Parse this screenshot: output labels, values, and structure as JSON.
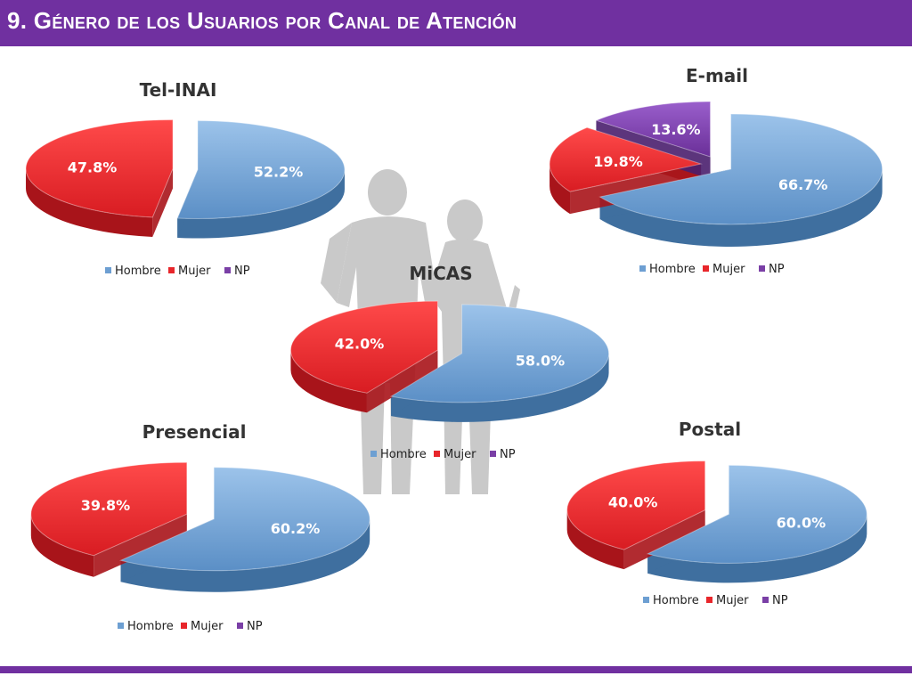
{
  "page": {
    "title": "9. Género de los Usuarios por Canal de Atención"
  },
  "colors": {
    "header": "#7030a0",
    "Hombre": "#6d9fd2",
    "Mujer": "#e8262b",
    "NP": "#7a3fa6",
    "silhouette": "#c8c8c8"
  },
  "legend": [
    "Hombre",
    "Mujer",
    "NP"
  ],
  "chart_data": [
    {
      "type": "pie",
      "title": "Tel-INAI",
      "series": [
        {
          "name": "Hombre",
          "value": 52.2,
          "label": "52.2%"
        },
        {
          "name": "Mujer",
          "value": 47.8,
          "label": "47.8%"
        }
      ]
    },
    {
      "type": "pie",
      "title": "E-mail",
      "series": [
        {
          "name": "Hombre",
          "value": 66.7,
          "label": "66.7%"
        },
        {
          "name": "Mujer",
          "value": 19.8,
          "label": "19.8%"
        },
        {
          "name": "NP",
          "value": 13.6,
          "label": "13.6%"
        }
      ]
    },
    {
      "type": "pie",
      "title": "MiCAS",
      "series": [
        {
          "name": "Hombre",
          "value": 58.0,
          "label": "58.0%"
        },
        {
          "name": "Mujer",
          "value": 42.0,
          "label": "42.0%"
        }
      ]
    },
    {
      "type": "pie",
      "title": "Presencial",
      "series": [
        {
          "name": "Hombre",
          "value": 60.2,
          "label": "60.2%"
        },
        {
          "name": "Mujer",
          "value": 39.8,
          "label": "39.8%"
        }
      ]
    },
    {
      "type": "pie",
      "title": "Postal",
      "series": [
        {
          "name": "Hombre",
          "value": 60.0,
          "label": "60.0%"
        },
        {
          "name": "Mujer",
          "value": 40.0,
          "label": "40.0%"
        }
      ]
    }
  ]
}
